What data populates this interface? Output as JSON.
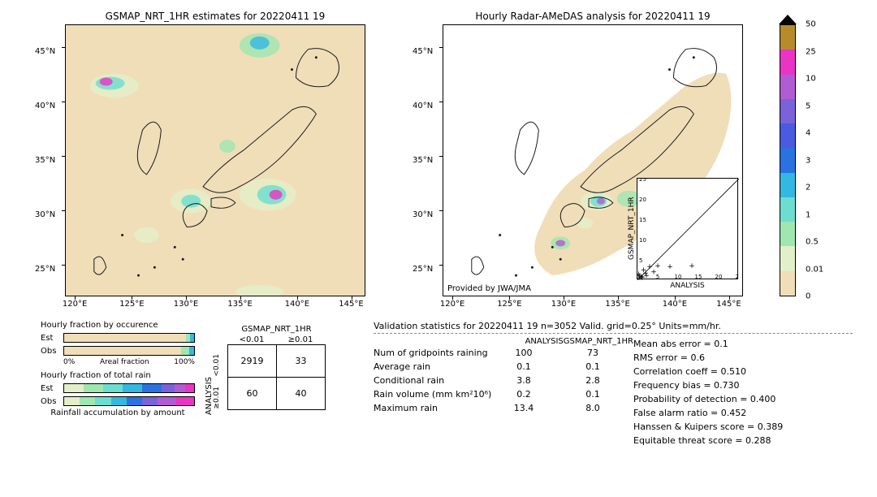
{
  "maps": {
    "left": {
      "title": "GSMAP_NRT_1HR estimates for 20220411 19"
    },
    "right": {
      "title": "Hourly Radar-AMeDAS analysis for 20220411 19",
      "provider": "Provided by JWA/JMA"
    },
    "yticks": [
      {
        "v": 45,
        "l": "45°N",
        "p": 0.08
      },
      {
        "v": 40,
        "l": "40°N",
        "p": 0.28
      },
      {
        "v": 35,
        "l": "35°N",
        "p": 0.48
      },
      {
        "v": 30,
        "l": "30°N",
        "p": 0.68
      },
      {
        "v": 25,
        "l": "25°N",
        "p": 0.88
      }
    ],
    "xticks": [
      {
        "v": 120,
        "l": "120°E",
        "p": 0.03
      },
      {
        "v": 125,
        "l": "125°E",
        "p": 0.22
      },
      {
        "v": 130,
        "l": "130°E",
        "p": 0.4
      },
      {
        "v": 135,
        "l": "135°E",
        "p": 0.58
      },
      {
        "v": 140,
        "l": "140°E",
        "p": 0.77
      },
      {
        "v": 145,
        "l": "145°E",
        "p": 0.95
      }
    ],
    "bg_land": "#f0deb9",
    "coastline_color": "#1a1a1a",
    "rain_colors": [
      "#e3efc8",
      "#9fe6b0",
      "#6cddd0",
      "#33b8e2",
      "#2a72e0"
    ]
  },
  "scatter": {
    "xlabel": "ANALYSIS",
    "ylabel": "GSMAP_NRT_1HR",
    "ticks": [
      0,
      5,
      10,
      15,
      20,
      25
    ],
    "points": [
      [
        0.5,
        0.5
      ],
      [
        1,
        0.3
      ],
      [
        1.5,
        2.0
      ],
      [
        2,
        1.2
      ],
      [
        3,
        2.8
      ],
      [
        4,
        1.5
      ],
      [
        5,
        3
      ],
      [
        8,
        2.8
      ],
      [
        13.4,
        3
      ],
      [
        0.3,
        1
      ],
      [
        0.8,
        0.2
      ],
      [
        2.2,
        0.6
      ],
      [
        1.2,
        0.2
      ]
    ]
  },
  "colorbar": {
    "labels": [
      "50",
      "25",
      "10",
      "5",
      "4",
      "3",
      "2",
      "1",
      "0.5",
      "0.01",
      "0"
    ],
    "colors": [
      "#b78a2c",
      "#e835c3",
      "#b05cd2",
      "#7a62d8",
      "#4a5be0",
      "#2a72e0",
      "#33b8e2",
      "#6cddd0",
      "#9fe6b0",
      "#e3efc8",
      "#f0deb9"
    ]
  },
  "fractions": {
    "occurrence": {
      "title": "Hourly fraction by occurence",
      "est_segs": [
        {
          "c": "#f0deb9",
          "w": 0.94
        },
        {
          "c": "#9fe6b0",
          "w": 0.03
        },
        {
          "c": "#33b8e2",
          "w": 0.03
        }
      ],
      "obs_segs": [
        {
          "c": "#f0deb9",
          "w": 0.9
        },
        {
          "c": "#9fe6b0",
          "w": 0.06
        },
        {
          "c": "#33b8e2",
          "w": 0.04
        }
      ],
      "left_axis": "0%",
      "mid_axis": "Areal fraction",
      "right_axis": "100%"
    },
    "total": {
      "title": "Hourly fraction of total rain",
      "est_segs": [
        {
          "c": "#e3efc8",
          "w": 0.15
        },
        {
          "c": "#9fe6b0",
          "w": 0.15
        },
        {
          "c": "#6cddd0",
          "w": 0.15
        },
        {
          "c": "#33b8e2",
          "w": 0.15
        },
        {
          "c": "#2a72e0",
          "w": 0.15
        },
        {
          "c": "#7a62d8",
          "w": 0.1
        },
        {
          "c": "#b05cd2",
          "w": 0.08
        },
        {
          "c": "#e835c3",
          "w": 0.07
        }
      ],
      "obs_segs": [
        {
          "c": "#e3efc8",
          "w": 0.12
        },
        {
          "c": "#9fe6b0",
          "w": 0.12
        },
        {
          "c": "#6cddd0",
          "w": 0.12
        },
        {
          "c": "#33b8e2",
          "w": 0.12
        },
        {
          "c": "#2a72e0",
          "w": 0.12
        },
        {
          "c": "#7a62d8",
          "w": 0.12
        },
        {
          "c": "#b05cd2",
          "w": 0.14
        },
        {
          "c": "#e835c3",
          "w": 0.14
        }
      ],
      "caption": "Rainfall accumulation by amount"
    },
    "row_labels": {
      "est": "Est",
      "obs": "Obs"
    }
  },
  "contingency": {
    "col_header": "GSMAP_NRT_1HR",
    "row_header": "ANALYSIS",
    "col_labels": [
      "<0.01",
      "≥0.01"
    ],
    "row_labels": [
      "<0.01",
      "≥0.01"
    ],
    "cells": [
      [
        "2919",
        "33"
      ],
      [
        "60",
        "40"
      ]
    ]
  },
  "validation": {
    "title": "Validation statistics for 20220411 19  n=3052 Valid. grid=0.25°  Units=mm/hr.",
    "col_headers": [
      "ANALYSIS",
      "GSMAP_NRT_1HR"
    ],
    "rows": [
      {
        "label": "Num of gridpoints raining",
        "v1": "100",
        "v2": "73"
      },
      {
        "label": "Average rain",
        "v1": "0.1",
        "v2": "0.1"
      },
      {
        "label": "Conditional rain",
        "v1": "3.8",
        "v2": "2.8"
      },
      {
        "label": "Rain volume (mm km²10⁶)",
        "v1": "0.2",
        "v2": "0.1"
      },
      {
        "label": "Maximum rain",
        "v1": "13.4",
        "v2": "8.0"
      }
    ],
    "scores": [
      {
        "label": "Mean abs error =",
        "v": "0.1"
      },
      {
        "label": "RMS error =",
        "v": "0.6"
      },
      {
        "label": "Correlation coeff =",
        "v": "0.510"
      },
      {
        "label": "Frequency bias =",
        "v": "0.730"
      },
      {
        "label": "Probability of detection =",
        "v": "0.400"
      },
      {
        "label": "False alarm ratio =",
        "v": "0.452"
      },
      {
        "label": "Hanssen & Kuipers score =",
        "v": "0.389"
      },
      {
        "label": "Equitable threat score =",
        "v": "0.288"
      }
    ]
  }
}
